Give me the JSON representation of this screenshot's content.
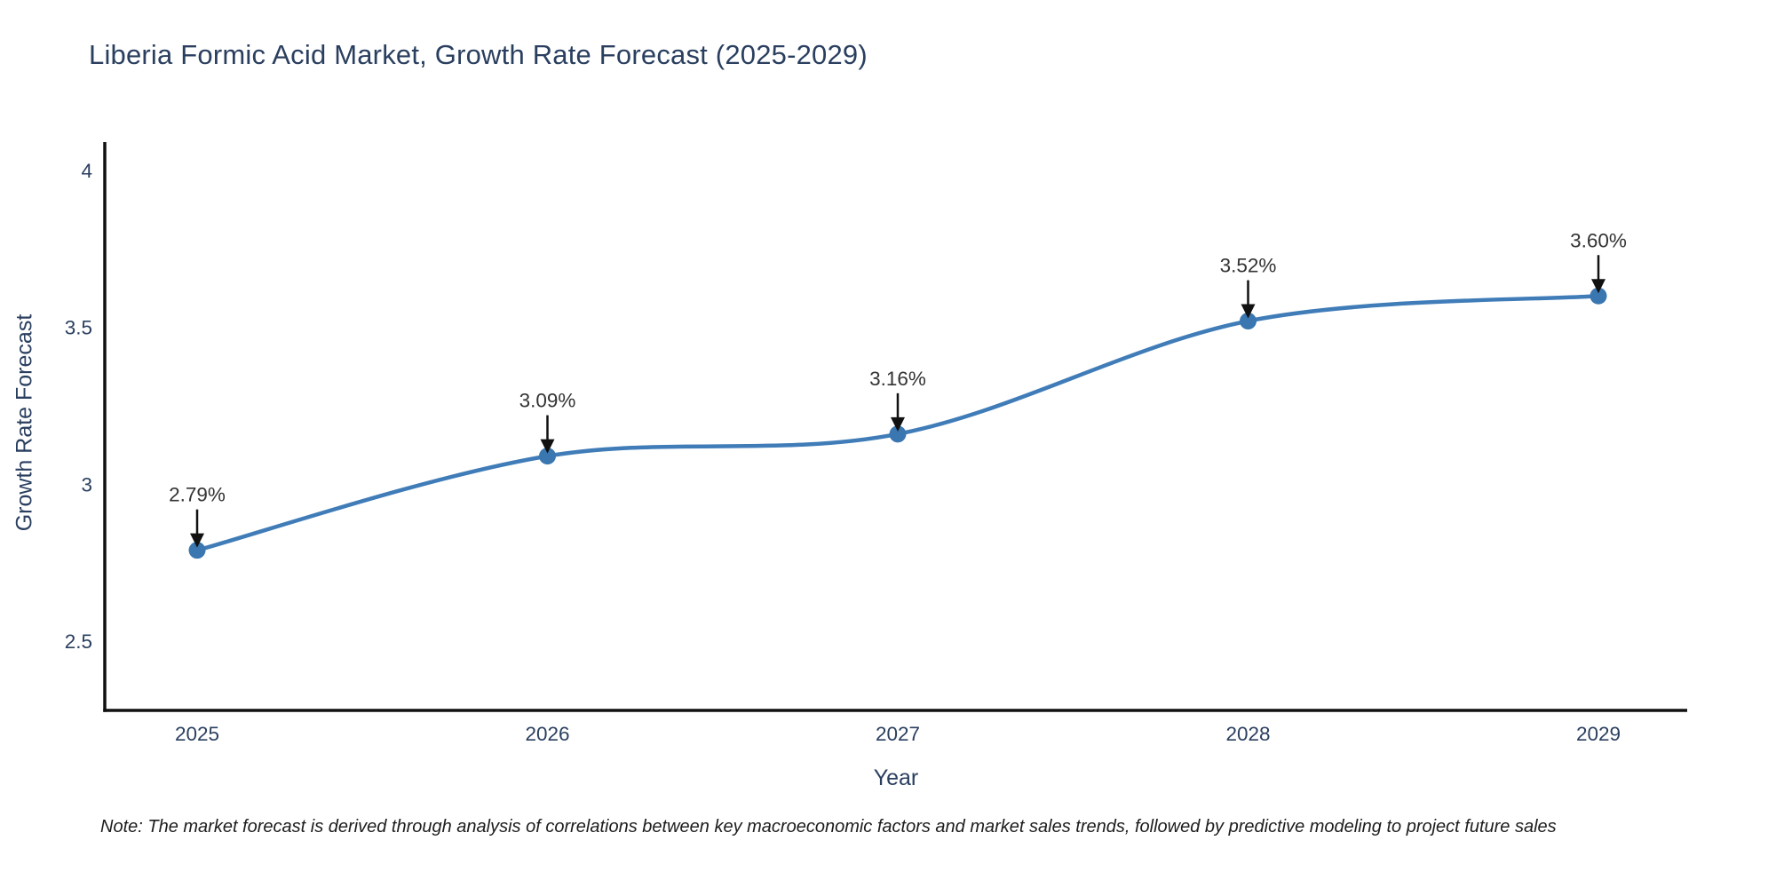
{
  "chart_data": {
    "type": "line",
    "title": "Liberia Formic Acid Market, Growth Rate Forecast (2025-2029)",
    "xlabel": "Year",
    "ylabel": "Growth Rate Forecast",
    "categories": [
      "2025",
      "2026",
      "2027",
      "2028",
      "2029"
    ],
    "series": [
      {
        "name": "Growth Rate Forecast",
        "values": [
          2.79,
          3.09,
          3.16,
          3.52,
          3.6
        ],
        "point_labels": [
          "2.79%",
          "3.09%",
          "3.16%",
          "3.52%",
          "3.60%"
        ]
      }
    ],
    "line_shape": "spline",
    "markers": true,
    "annotations_have_arrows": true,
    "ytick_values": [
      4,
      3.5,
      3,
      2.5
    ],
    "ytick_labels": [
      "4",
      "3.5",
      "3",
      "2.5"
    ],
    "ylim": [
      2.28,
      4.09
    ],
    "grid": false,
    "legend": "none",
    "colors": {
      "line": "#3f7cb8",
      "marker": "#3a76b0",
      "axis_line": "#111111",
      "tick_text": "#2a3f5f",
      "annotation_text": "#333333",
      "arrow": "#111111",
      "background": "#ffffff"
    }
  },
  "note": {
    "text": "Note: The market forecast is derived through analysis of correlations between key macroeconomic factors and market sales trends, followed by predictive modeling to project future sales"
  }
}
